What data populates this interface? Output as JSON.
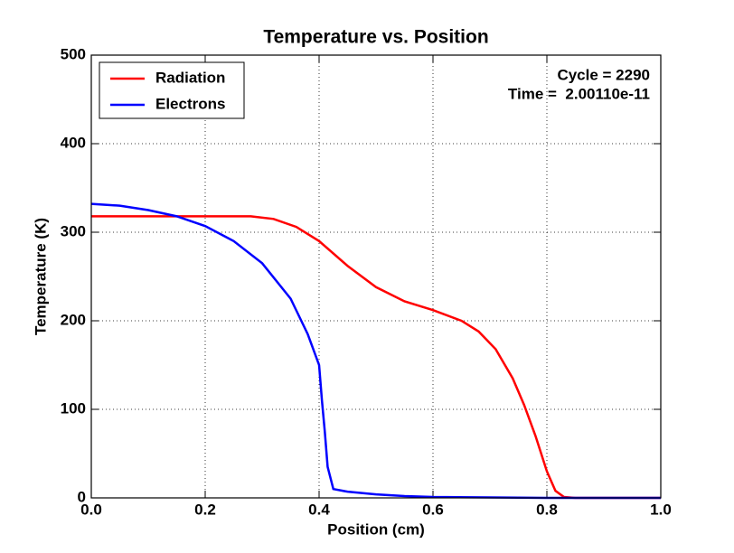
{
  "chart_data": {
    "type": "line",
    "title": "Temperature vs. Position",
    "xlabel": "Position (cm)",
    "ylabel": "Temperature (K)",
    "annotations": [
      "Cycle = 2290",
      "Time =  2.00110e-11"
    ],
    "xlim": [
      0,
      1
    ],
    "ylim": [
      0,
      500
    ],
    "xticks": [
      {
        "value": 0,
        "label": "0.0"
      },
      0.2,
      0.4,
      0.6,
      0.8,
      {
        "value": 1,
        "label": "1.0"
      }
    ],
    "yticks": [
      0,
      100,
      200,
      300,
      400,
      500
    ],
    "grid": true,
    "legend": "upper left",
    "series": [
      {
        "name": "Radiation",
        "color": "#ff0000",
        "x": [
          0,
          0.1,
          0.2,
          0.28,
          0.32,
          0.36,
          0.4,
          0.45,
          0.5,
          0.55,
          0.6,
          0.65,
          0.68,
          0.71,
          0.74,
          0.76,
          0.78,
          0.8,
          0.815,
          0.83,
          0.85,
          0.9,
          1.0
        ],
        "values": [
          318,
          318,
          318,
          318,
          315,
          306,
          290,
          262,
          238,
          222,
          212,
          200,
          188,
          168,
          135,
          105,
          70,
          30,
          8,
          1,
          0,
          0,
          0
        ]
      },
      {
        "name": "Electrons",
        "color": "#0000ff",
        "x": [
          0,
          0.05,
          0.1,
          0.15,
          0.2,
          0.25,
          0.3,
          0.35,
          0.38,
          0.4,
          0.405,
          0.41,
          0.415,
          0.425,
          0.45,
          0.5,
          0.55,
          0.6,
          0.7,
          0.8,
          1.0
        ],
        "values": [
          332,
          330,
          325,
          318,
          307,
          290,
          265,
          225,
          185,
          150,
          110,
          75,
          35,
          10,
          7,
          4,
          2,
          1,
          0.5,
          0,
          0
        ]
      }
    ]
  }
}
